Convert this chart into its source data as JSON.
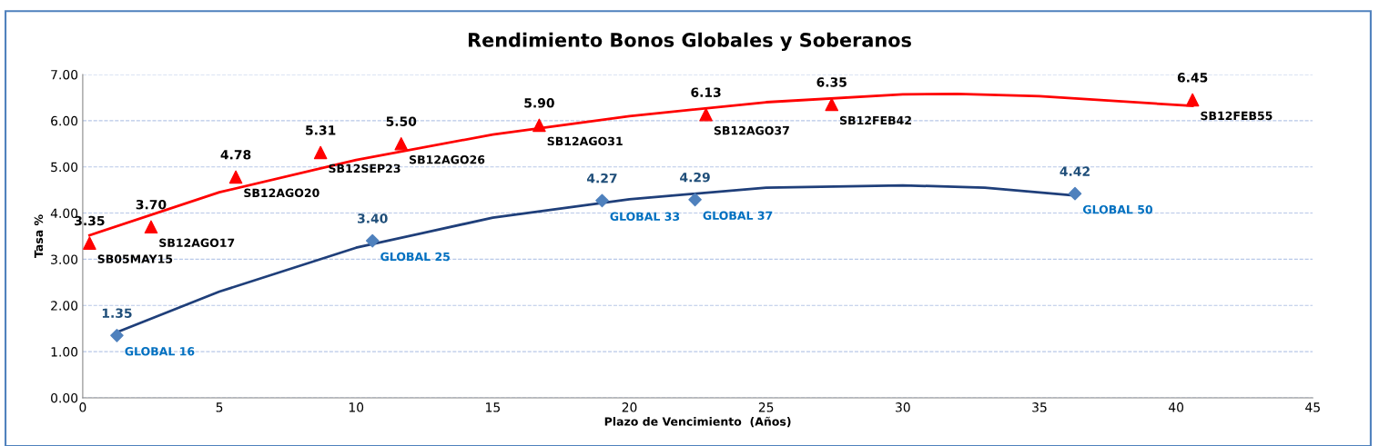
{
  "chart_data": {
    "type": "scatter",
    "title": "Rendimiento Bonos Globales y Soberanos",
    "xlabel": "Plazo de Vencimiento  (Años)",
    "ylabel": "Tasa %",
    "xlim": [
      0,
      45
    ],
    "xticks": [
      0,
      5,
      10,
      15,
      20,
      25,
      30,
      35,
      40,
      45
    ],
    "ylim": [
      0,
      7
    ],
    "yticks": [
      {
        "value": 0,
        "label": "0.00"
      },
      {
        "value": 1,
        "label": "1.00"
      },
      {
        "value": 2,
        "label": "2.00"
      },
      {
        "value": 3,
        "label": "3.00"
      },
      {
        "value": 4,
        "label": "4.00"
      },
      {
        "value": 5,
        "label": "5.00"
      },
      {
        "value": 6,
        "label": "6.00"
      },
      {
        "value": 7,
        "label": "7.00"
      }
    ],
    "grid": "y",
    "series": [
      {
        "marker": "triangle",
        "color": "#ff0000",
        "x": [
          0.25,
          2.5,
          5.6,
          8.7,
          11.65,
          16.7,
          22.8,
          27.4,
          40.6
        ],
        "values": [
          3.35,
          3.7,
          4.78,
          5.31,
          5.5,
          5.9,
          6.13,
          6.35,
          6.45
        ],
        "value_labels": [
          "3.35",
          "3.70",
          "4.78",
          "5.31",
          "5.50",
          "5.90",
          "6.13",
          "6.35",
          "6.45"
        ]
      },
      {
        "marker": "diamond",
        "color": "#4f81bd",
        "x": [
          1.25,
          10.6,
          19.0,
          22.4,
          36.3
        ],
        "values": [
          1.35,
          3.4,
          4.27,
          4.29,
          4.42
        ],
        "value_labels": [
          "1.35",
          "3.40",
          "4.27",
          "4.29",
          "4.42"
        ]
      },
      {
        "type": "line",
        "color": "#ff0000",
        "x": [
          0.25,
          5,
          10,
          15,
          20,
          25,
          30,
          32,
          35,
          40.6
        ],
        "values": [
          3.52,
          4.45,
          5.15,
          5.7,
          6.1,
          6.4,
          6.57,
          6.58,
          6.53,
          6.32
        ]
      },
      {
        "type": "line",
        "color": "#1f3f7a",
        "x": [
          1.25,
          5,
          10,
          15,
          20,
          25,
          30,
          33,
          36.3
        ],
        "values": [
          1.42,
          2.3,
          3.25,
          3.9,
          4.3,
          4.55,
          4.6,
          4.55,
          4.38
        ]
      }
    ],
    "annotations": [
      {
        "text": "SB05MAY15",
        "x": 0.25,
        "y": 3.35
      },
      {
        "text": "SB12AGO17",
        "x": 2.5,
        "y": 3.7
      },
      {
        "text": "SB12AGO20",
        "x": 5.6,
        "y": 4.78
      },
      {
        "text": "SB12SEP23",
        "x": 8.7,
        "y": 5.31
      },
      {
        "text": "SB12AGO26",
        "x": 11.65,
        "y": 5.5
      },
      {
        "text": "SB12AGO31",
        "x": 16.7,
        "y": 5.9
      },
      {
        "text": "SB12AGO37",
        "x": 22.8,
        "y": 6.13
      },
      {
        "text": "SB12FEB42",
        "x": 27.4,
        "y": 6.35
      },
      {
        "text": "SB12FEB55",
        "x": 40.6,
        "y": 6.45
      },
      {
        "text": "GLOBAL 16",
        "x": 1.25,
        "y": 1.35
      },
      {
        "text": "GLOBAL 25",
        "x": 10.6,
        "y": 3.4
      },
      {
        "text": "GLOBAL 33",
        "x": 19.0,
        "y": 4.27
      },
      {
        "text": "GLOBAL 37",
        "x": 22.4,
        "y": 4.29
      },
      {
        "text": "GLOBAL 50",
        "x": 36.3,
        "y": 4.42
      }
    ]
  }
}
